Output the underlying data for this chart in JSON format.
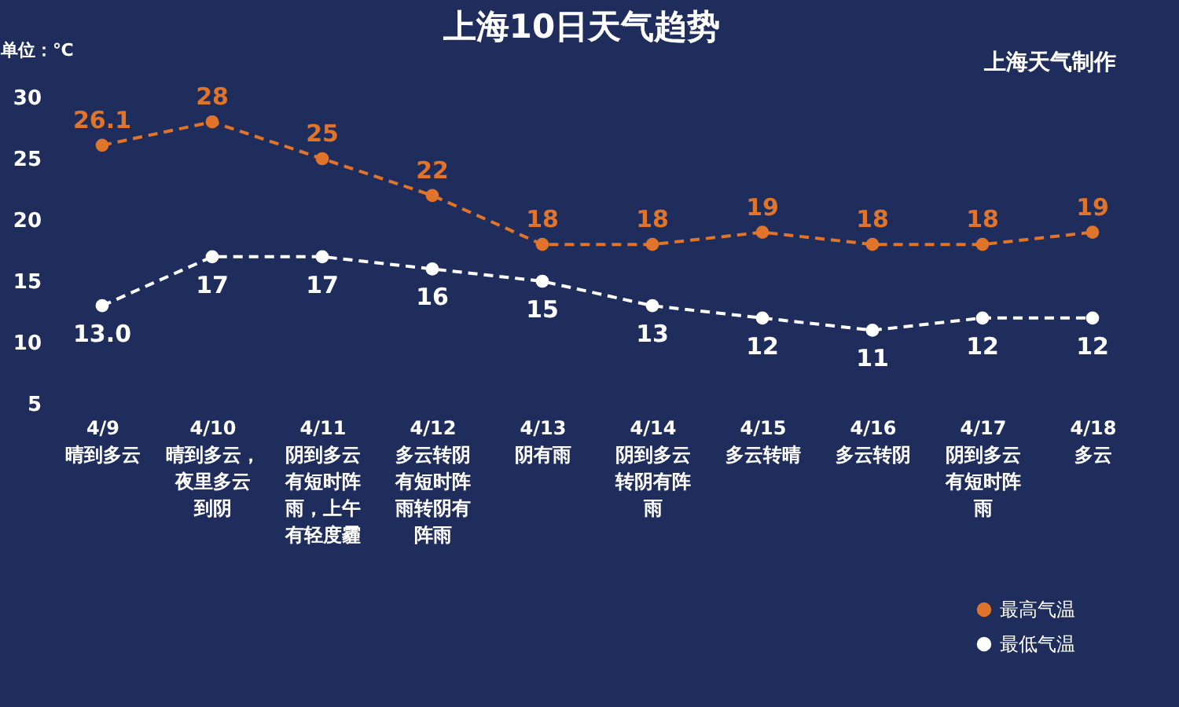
{
  "chart_data": {
    "type": "line",
    "title": "上海10日天气趋势",
    "ylabel": "单位：℃",
    "annotations": [
      "上海天气制作"
    ],
    "categories": [
      "4/9 晴到多云",
      "4/10 晴到多云，夜里多云到阴",
      "4/11 阴到多云有短时阵雨，上午有轻度霾",
      "4/12 多云转阴有短时阵雨转阴有阵雨",
      "4/13 阴有雨",
      "4/14 阴到多云转阴有阵雨",
      "4/15 多云转晴",
      "4/16 多云转阴",
      "4/17 阴到多云有短时阵雨",
      "4/18 多云"
    ],
    "series": [
      {
        "name": "最高气温",
        "color": "#e0742a",
        "values": [
          26.1,
          28,
          25,
          22,
          18,
          18,
          19,
          18,
          18,
          19
        ],
        "value_labels": [
          "26.1",
          "28",
          "25",
          "22",
          "18",
          "18",
          "19",
          "18",
          "18",
          "19"
        ]
      },
      {
        "name": "最低气温",
        "color": "#ffffff",
        "values": [
          13.0,
          17,
          17,
          16,
          15,
          13,
          12,
          11,
          12,
          12
        ],
        "value_labels": [
          "13.0",
          "17",
          "17",
          "16",
          "15",
          "13",
          "12",
          "11",
          "12",
          "12"
        ]
      }
    ],
    "ylim": [
      5,
      30
    ],
    "yticks": [
      5,
      10,
      15,
      20,
      25,
      30
    ],
    "grid": false,
    "legend": "bottom right",
    "marker": "circle",
    "line_style": "dashed"
  }
}
